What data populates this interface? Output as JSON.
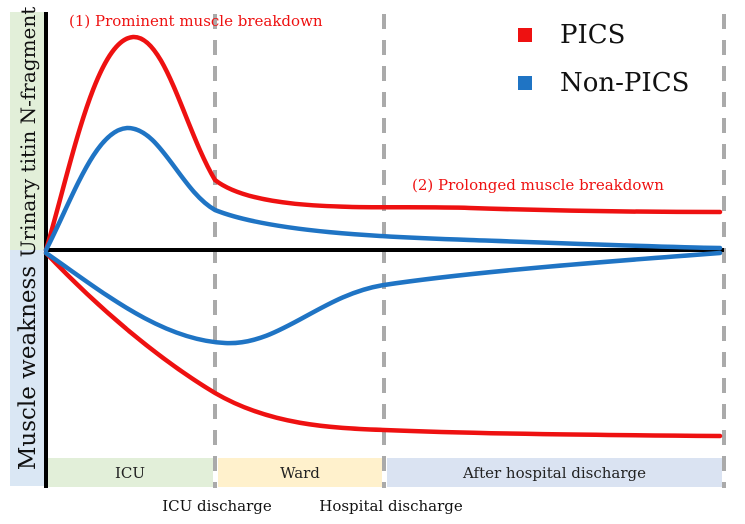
{
  "axes": {
    "upper_label": "Urinary titin N-fragment",
    "lower_label": "Muscle weakness"
  },
  "colors": {
    "pics": "#ee1111",
    "non_pics": "#1f74c4",
    "upper_band": "#e2efd9",
    "lower_band": "#dae7f4",
    "icu_phase": "#e2efd9",
    "ward_phase": "#fff1cc",
    "after_phase": "#dae3f2"
  },
  "annotations": {
    "peak": "(1) Prominent muscle breakdown",
    "prolonged": "(2) Prolonged muscle breakdown"
  },
  "legend": [
    {
      "label": "PICS",
      "color": "#ee1111"
    },
    {
      "label": "Non-PICS",
      "color": "#1f74c4"
    }
  ],
  "phases": [
    {
      "label": "ICU"
    },
    {
      "label": "Ward"
    },
    {
      "label": "After hospital discharge"
    }
  ],
  "milestones": [
    {
      "label": "ICU discharge"
    },
    {
      "label": "Hospital discharge"
    }
  ]
}
